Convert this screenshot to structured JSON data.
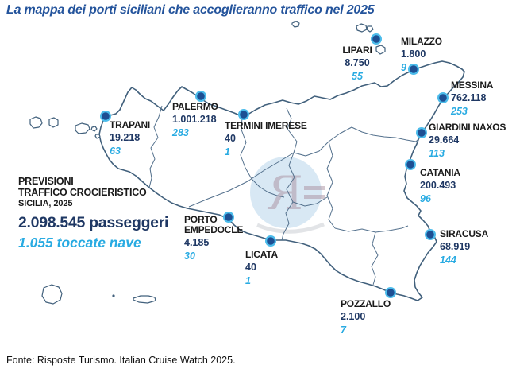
{
  "header": {
    "title": "La mappa dei porti siciliani che accoglieranno traffico nel 2025"
  },
  "summary": {
    "line1": "PREVISIONI",
    "line2": "TRAFFICO CROCIERISTICO",
    "line3": "SICILIA, 2025",
    "passengers": "2.098.545 passeggeri",
    "ship_calls": "1.055 toccate nave"
  },
  "ports": [
    {
      "id": "trapani",
      "name": "TRAPANI",
      "passengers": "19.218",
      "calls": "63"
    },
    {
      "id": "palermo",
      "name": "PALERMO",
      "passengers": "1.001.218",
      "calls": "283"
    },
    {
      "id": "termini-imerese",
      "name": "TERMINI IMERESE",
      "passengers": "40",
      "calls": "1"
    },
    {
      "id": "lipari",
      "name": "LIPARI",
      "passengers": "8.750",
      "calls": "55"
    },
    {
      "id": "milazzo",
      "name": "MILAZZO",
      "passengers": "1.800",
      "calls": "9"
    },
    {
      "id": "messina",
      "name": "MESSINA",
      "passengers": "762.118",
      "calls": "253"
    },
    {
      "id": "giardini-naxos",
      "name": "GIARDINI NAXOS",
      "passengers": "29.664",
      "calls": "113"
    },
    {
      "id": "catania",
      "name": "CATANIA",
      "passengers": "200.493",
      "calls": "96"
    },
    {
      "id": "siracusa",
      "name": "SIRACUSA",
      "passengers": "68.919",
      "calls": "144"
    },
    {
      "id": "pozzallo",
      "name": "POZZALLO",
      "passengers": "2.100",
      "calls": "7"
    },
    {
      "id": "licata",
      "name": "LICATA",
      "passengers": "40",
      "calls": "1"
    },
    {
      "id": "porto-empedocle",
      "name": "PORTO EMPEDOCLE",
      "passengers": "4.185",
      "calls": "30"
    }
  ],
  "watermark": {
    "monogram": "R"
  },
  "footer": {
    "source": "Fonte: Risposte Turismo. Italian Cruise Watch 2025."
  },
  "colors": {
    "title": "#24549C",
    "black": "#1A1A1A",
    "navy": "#1F3864",
    "lightblue": "#29ABE2",
    "coast": "#41607C",
    "inner_border": "#54718D",
    "dot": "#1D4F93",
    "dot_ring": "#4CBCEB",
    "watermark_fill": "#CFE3F2",
    "watermark_glyph": "#A9909F"
  }
}
